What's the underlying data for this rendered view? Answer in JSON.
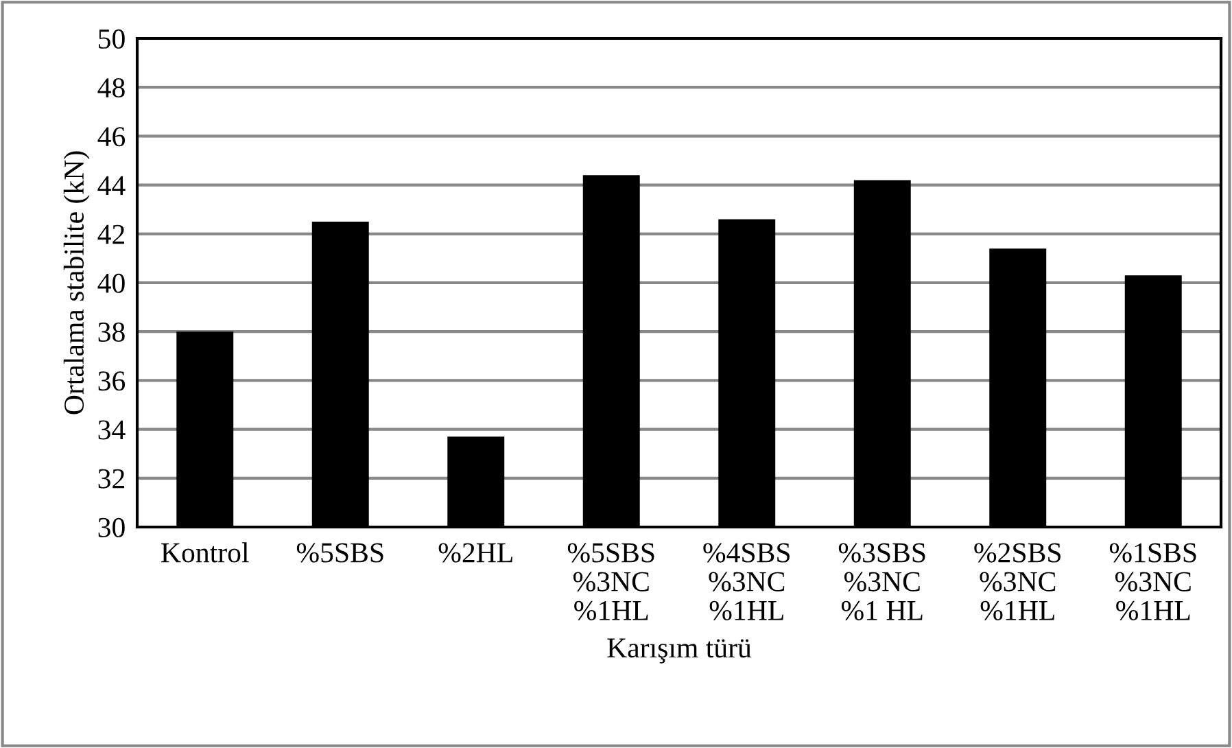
{
  "chart_data": {
    "type": "bar",
    "xlabel": "Karışım türü",
    "ylabel": "Ortalama stabilite (kN)",
    "categories": [
      "Kontrol",
      "%5SBS",
      "%2HL",
      "%5SBS\n%3NC\n%1HL",
      "%4SBS\n%3NC\n%1HL",
      "%3SBS\n%3NC\n%1 HL",
      "%2SBS\n%3NC\n%1HL",
      "%1SBS\n%3NC\n%1HL"
    ],
    "values": [
      38.0,
      42.5,
      33.7,
      44.4,
      42.6,
      44.2,
      41.4,
      40.3
    ],
    "color": "#000000",
    "ylim": [
      30,
      50
    ],
    "yticks": [
      30,
      32,
      34,
      36,
      38,
      40,
      42,
      44,
      46,
      48,
      50
    ],
    "grid": "y",
    "legend": false
  }
}
